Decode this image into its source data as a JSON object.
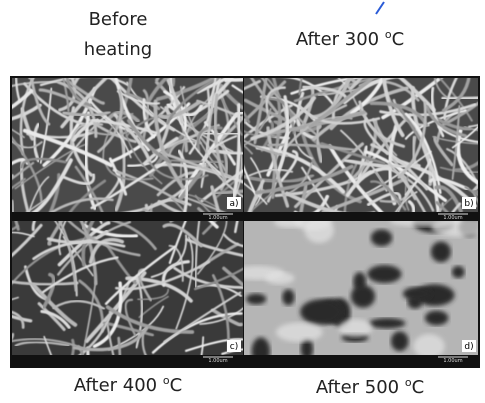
{
  "caption_top_left": [
    "Before",
    "heating"
  ],
  "panels": [
    {
      "tag": "a)",
      "scale": "1.00um"
    },
    {
      "tag": "b)",
      "scale": "1.00um",
      "caption": {
        "text": "After 300",
        "sup": "o",
        "unit": "C"
      }
    },
    {
      "tag": "c)",
      "scale": "1.00um",
      "caption": {
        "text": "After 400",
        "sup": "o",
        "unit": "C"
      }
    },
    {
      "tag": "d)",
      "scale": "1.00um",
      "caption": {
        "text": "After 500",
        "sup": "o",
        "unit": "C"
      }
    }
  ]
}
